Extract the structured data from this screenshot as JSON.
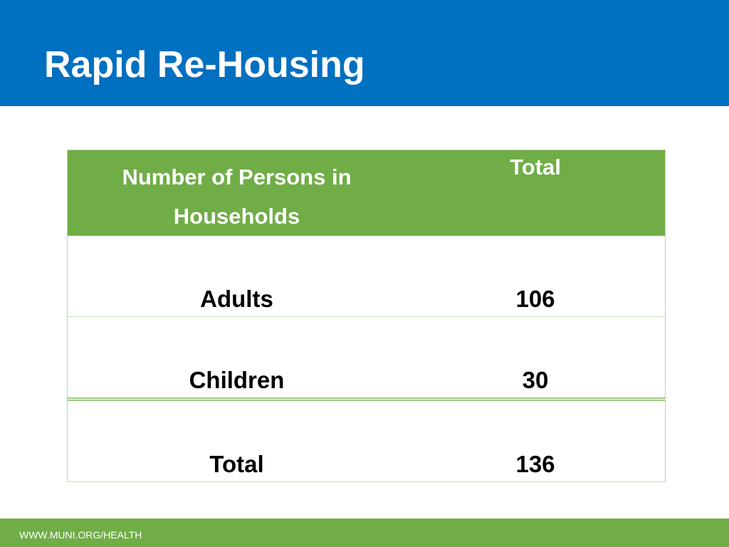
{
  "slide": {
    "title": "Rapid Re-Housing"
  },
  "table": {
    "headers": {
      "label": "Number of Persons in Households",
      "total": "Total"
    },
    "rows": [
      {
        "label": "Adults",
        "value": "106"
      },
      {
        "label": "Children",
        "value": "30"
      },
      {
        "label": "Total",
        "value": "136"
      }
    ]
  },
  "footer": {
    "url": "WWW.MUNI.ORG/HEALTH"
  },
  "colors": {
    "title_bar": "#0070C0",
    "table_header": "#70AD47",
    "footer_bar": "#70AD47",
    "header_text": "#FFFFFF"
  }
}
